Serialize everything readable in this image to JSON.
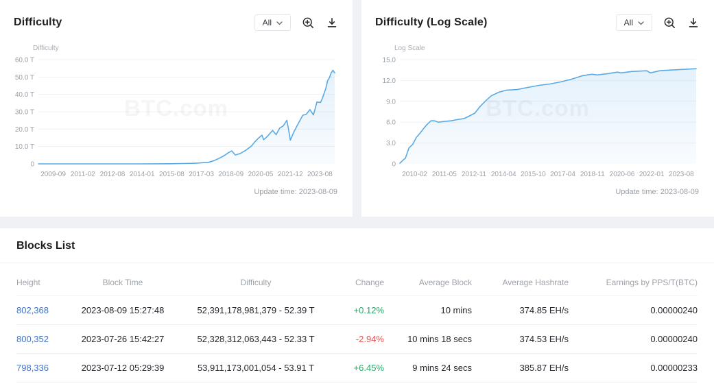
{
  "chart_data": [
    {
      "type": "area",
      "title": "Difficulty",
      "ylabel": "Difficulty",
      "xlabel": "",
      "unit": "T",
      "ylim": [
        0,
        60
      ],
      "grid": true,
      "legend": "none",
      "y_ticks": [
        "60.0 T",
        "50.0 T",
        "40.0 T",
        "30.0 T",
        "20.0 T",
        "10.0 T",
        "0"
      ],
      "x_ticks": [
        "2009-09",
        "2011-02",
        "2012-08",
        "2014-01",
        "2015-08",
        "2017-03",
        "2018-09",
        "2020-05",
        "2021-12",
        "2023-08"
      ],
      "points": [
        [
          "2009-09",
          0.0
        ],
        [
          "2010-06",
          0.0
        ],
        [
          "2011-06",
          0.0
        ],
        [
          "2012-08",
          0.0
        ],
        [
          "2013-09",
          0.0001
        ],
        [
          "2014-06",
          0.01
        ],
        [
          "2015-03",
          0.047
        ],
        [
          "2015-12",
          0.07
        ],
        [
          "2016-06",
          0.2
        ],
        [
          "2016-12",
          0.31
        ],
        [
          "2017-03",
          0.46
        ],
        [
          "2017-06",
          0.71
        ],
        [
          "2017-09",
          0.92
        ],
        [
          "2017-12",
          1.87
        ],
        [
          "2018-03",
          3.29
        ],
        [
          "2018-06",
          4.94
        ],
        [
          "2018-08",
          6.39
        ],
        [
          "2018-10",
          7.45
        ],
        [
          "2018-12",
          5.11
        ],
        [
          "2019-03",
          6.07
        ],
        [
          "2019-06",
          7.93
        ],
        [
          "2019-09",
          10.18
        ],
        [
          "2019-11",
          12.72
        ],
        [
          "2020-01",
          14.78
        ],
        [
          "2020-03",
          16.55
        ],
        [
          "2020-04",
          13.91
        ],
        [
          "2020-06",
          15.78
        ],
        [
          "2020-09",
          19.31
        ],
        [
          "2020-11",
          16.79
        ],
        [
          "2021-01",
          20.61
        ],
        [
          "2021-03",
          21.87
        ],
        [
          "2021-05",
          25.05
        ],
        [
          "2021-06",
          19.93
        ],
        [
          "2021-07",
          13.67
        ],
        [
          "2021-09",
          18.42
        ],
        [
          "2021-12",
          24.27
        ],
        [
          "2022-02",
          27.97
        ],
        [
          "2022-04",
          28.59
        ],
        [
          "2022-06",
          31.25
        ],
        [
          "2022-08",
          28.17
        ],
        [
          "2022-10",
          35.61
        ],
        [
          "2022-12",
          35.36
        ],
        [
          "2023-01",
          37.59
        ],
        [
          "2023-03",
          43.55
        ],
        [
          "2023-04",
          48.01
        ],
        [
          "2023-05",
          49.55
        ],
        [
          "2023-06",
          52.35
        ],
        [
          "2023-07",
          53.91
        ],
        [
          "2023-08",
          52.39
        ]
      ]
    },
    {
      "type": "area",
      "title": "Difficulty (Log Scale)",
      "ylabel": "Log Scale",
      "xlabel": "",
      "unit": "",
      "ylim": [
        0,
        15
      ],
      "grid": true,
      "legend": "none",
      "y_ticks": [
        "15.0",
        "12.0",
        "9.0",
        "6.0",
        "3.0",
        "0"
      ],
      "x_ticks": [
        "2010-02",
        "2011-05",
        "2012-11",
        "2014-04",
        "2015-10",
        "2017-04",
        "2018-11",
        "2020-06",
        "2022-01",
        "2023-08"
      ],
      "points": [
        [
          "2010-02",
          0.1
        ],
        [
          "2010-04",
          0.6
        ],
        [
          "2010-05",
          0.8
        ],
        [
          "2010-07",
          2.3
        ],
        [
          "2010-09",
          2.8
        ],
        [
          "2010-11",
          3.8
        ],
        [
          "2011-01",
          4.4
        ],
        [
          "2011-03",
          5.1
        ],
        [
          "2011-05",
          5.7
        ],
        [
          "2011-07",
          6.2
        ],
        [
          "2011-09",
          6.2
        ],
        [
          "2011-11",
          6.0
        ],
        [
          "2012-02",
          6.1
        ],
        [
          "2012-06",
          6.2
        ],
        [
          "2012-10",
          6.4
        ],
        [
          "2013-01",
          6.5
        ],
        [
          "2013-04",
          6.9
        ],
        [
          "2013-07",
          7.3
        ],
        [
          "2013-10",
          8.3
        ],
        [
          "2014-01",
          9.1
        ],
        [
          "2014-04",
          9.8
        ],
        [
          "2014-08",
          10.3
        ],
        [
          "2014-12",
          10.6
        ],
        [
          "2015-06",
          10.7
        ],
        [
          "2015-12",
          11.0
        ],
        [
          "2016-06",
          11.3
        ],
        [
          "2016-12",
          11.5
        ],
        [
          "2017-06",
          11.8
        ],
        [
          "2017-12",
          12.2
        ],
        [
          "2018-06",
          12.7
        ],
        [
          "2018-11",
          12.9
        ],
        [
          "2019-02",
          12.8
        ],
        [
          "2019-08",
          13.0
        ],
        [
          "2020-01",
          13.2
        ],
        [
          "2020-03",
          13.1
        ],
        [
          "2020-09",
          13.3
        ],
        [
          "2021-05",
          13.4
        ],
        [
          "2021-07",
          13.1
        ],
        [
          "2021-12",
          13.4
        ],
        [
          "2022-06",
          13.5
        ],
        [
          "2023-01",
          13.6
        ],
        [
          "2023-08",
          13.7
        ]
      ]
    }
  ],
  "cards": [
    {
      "title": "Difficulty",
      "range_selector": "All",
      "axis_title": "Difficulty",
      "watermark": "BTC.com",
      "update_time": "Update time: 2023-08-09"
    },
    {
      "title": "Difficulty (Log Scale)",
      "range_selector": "All",
      "axis_title": "Log Scale",
      "watermark": "BTC.com",
      "update_time": "Update time: 2023-08-09"
    }
  ],
  "blocks": {
    "title": "Blocks List",
    "columns": [
      "Height",
      "Block Time",
      "Difficulty",
      "Change",
      "Average Block",
      "Average Hashrate",
      "Earnings by PPS/T(BTC)"
    ],
    "rows": [
      {
        "height": "802,368",
        "block_time": "2023-08-09 15:27:48",
        "difficulty": "52,391,178,981,379 - 52.39 T",
        "change": "+0.12%",
        "average_block": "10 mins",
        "average_hashrate": "374.85 EH/s",
        "earnings": "0.00000240"
      },
      {
        "height": "800,352",
        "block_time": "2023-07-26 15:42:27",
        "difficulty": "52,328,312,063,443 - 52.33 T",
        "change": "-2.94%",
        "average_block": "10 mins 18 secs",
        "average_hashrate": "374.53 EH/s",
        "earnings": "0.00000240"
      },
      {
        "height": "798,336",
        "block_time": "2023-07-12 05:29:39",
        "difficulty": "53,911,173,001,054 - 53.91 T",
        "change": "+6.45%",
        "average_block": "9 mins 24 secs",
        "average_hashrate": "385.87 EH/s",
        "earnings": "0.00000233"
      }
    ]
  },
  "colors": {
    "accent_blue": "#58A9E4",
    "link_blue": "#4173C9",
    "positive_green": "#2BA769",
    "negative_red": "#E85555",
    "grid_line": "#f0f1f3",
    "tick_text": "#9aa0a6"
  }
}
